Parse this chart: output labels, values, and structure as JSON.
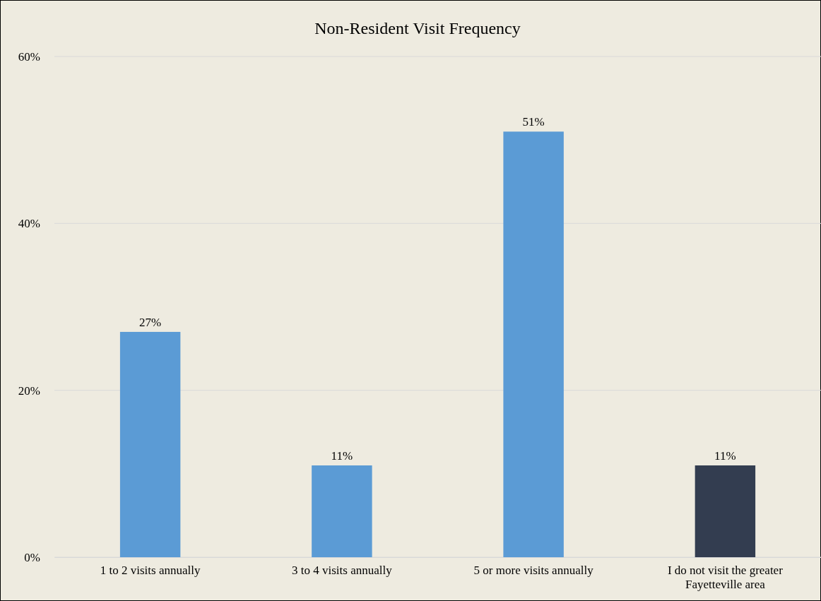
{
  "chart_data": {
    "type": "bar",
    "title": "Non-Resident Visit Frequency",
    "categories": [
      "1 to 2 visits annually",
      "3 to 4 visits annually",
      "5 or more visits annually",
      "I do not visit the greater Fayetteville area"
    ],
    "values": [
      27,
      11,
      51,
      11
    ],
    "colors": [
      "#5b9bd5",
      "#5b9bd5",
      "#5b9bd5",
      "#333d50"
    ],
    "value_labels": [
      "27%",
      "11%",
      "51%",
      "11%"
    ],
    "ylim": [
      0,
      60
    ],
    "yticks": [
      {
        "value": 0,
        "label": "0%"
      },
      {
        "value": 20,
        "label": "20%"
      },
      {
        "value": 40,
        "label": "40%"
      },
      {
        "value": 60,
        "label": "60%"
      }
    ],
    "grid": "y"
  }
}
